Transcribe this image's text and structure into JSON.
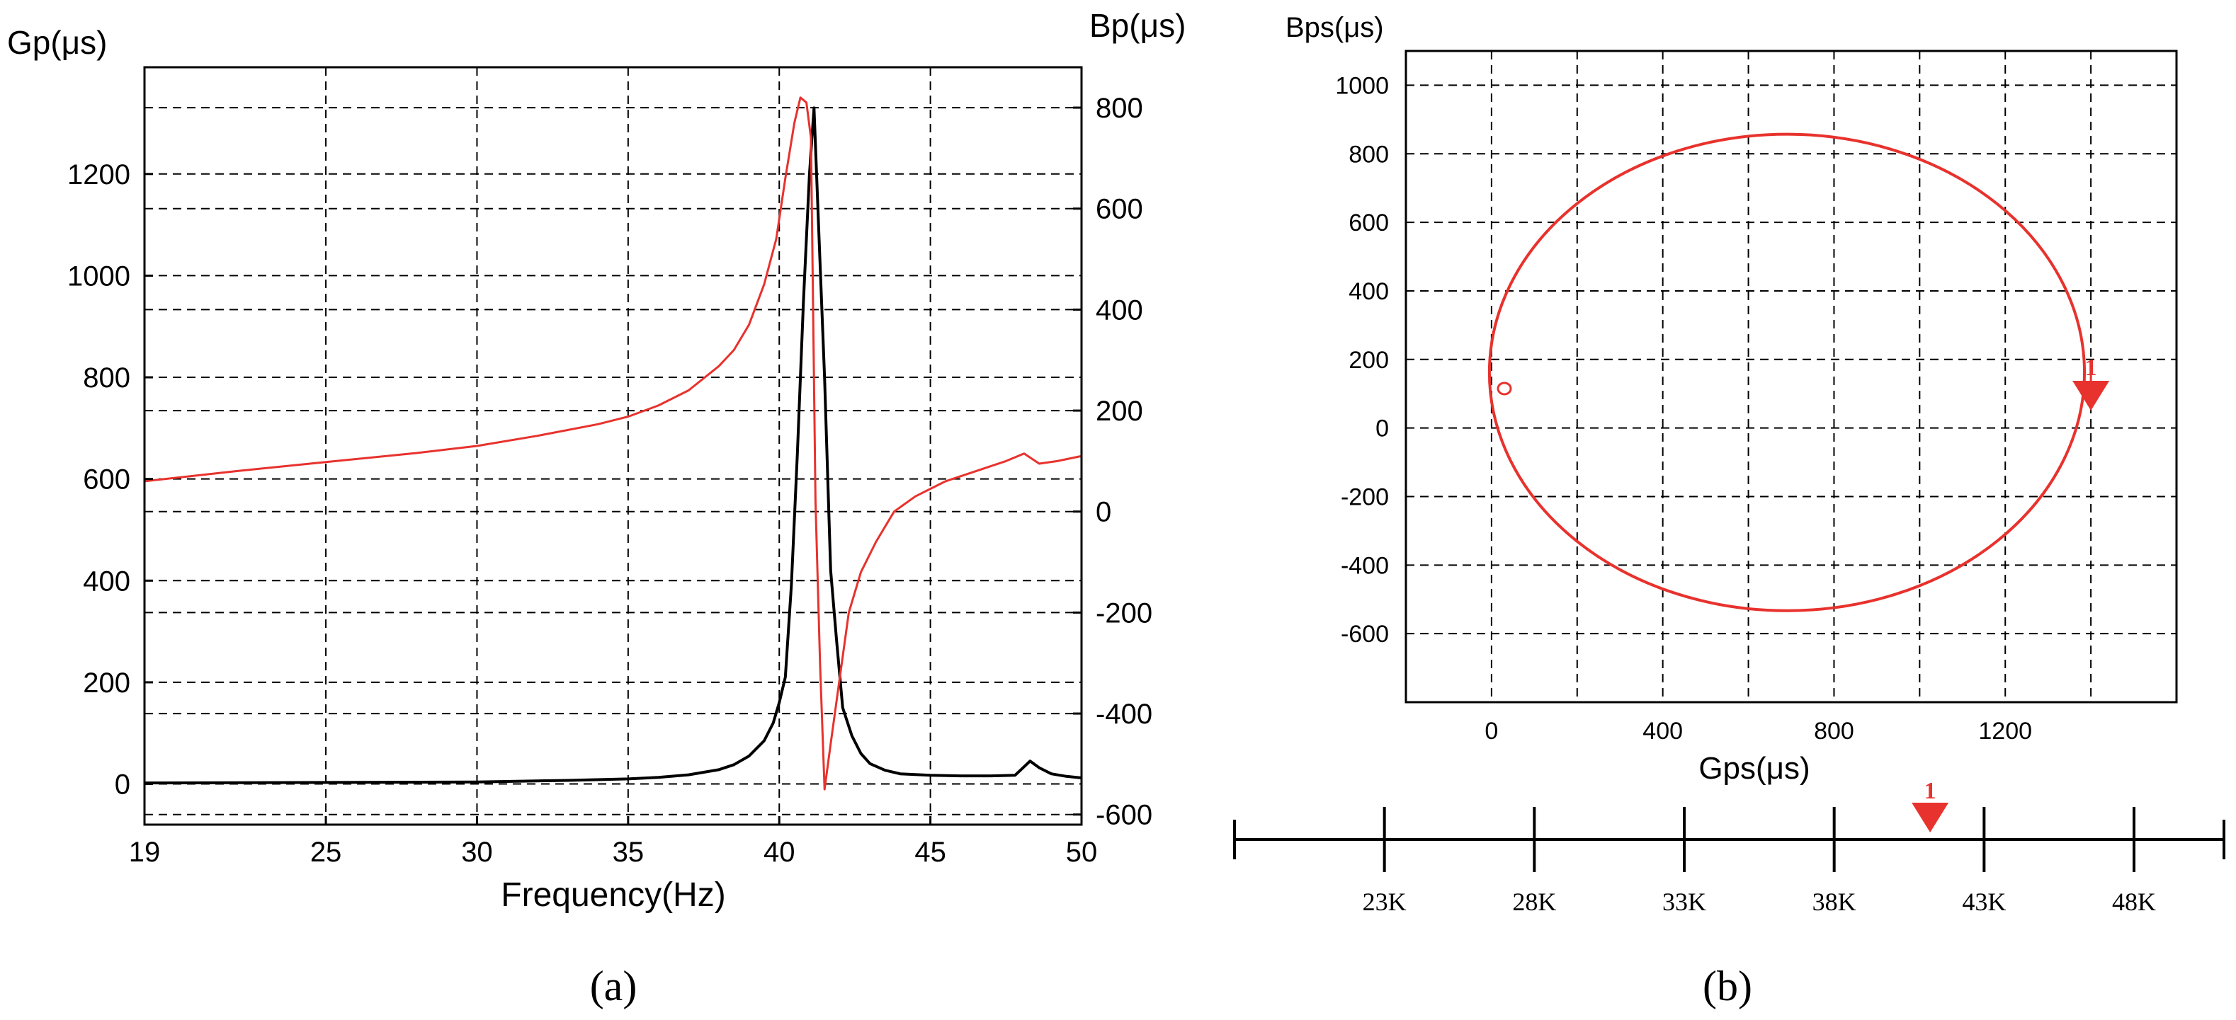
{
  "panels": {
    "a_label": "(a)",
    "b_label": "(b)"
  },
  "colors": {
    "red": "#e8322d",
    "black": "#000000"
  },
  "chart_data": [
    {
      "type": "line",
      "panel": "a",
      "xlabel": "Frequency(Hz)",
      "ylabel_left": "Gp(μs)",
      "ylabel_right": "Bp(μs)",
      "xlim": [
        19,
        50
      ],
      "ylim_left": [
        -80,
        1410
      ],
      "ylim_right": [
        -620,
        880
      ],
      "x_ticks": [
        "19",
        "25",
        "30",
        "35",
        "40",
        "45",
        "50"
      ],
      "x_tick_values": [
        19,
        25,
        30,
        35,
        40,
        45,
        50
      ],
      "y_left_ticks": [
        "0",
        "200",
        "400",
        "600",
        "800",
        "1000",
        "1200"
      ],
      "y_left_tick_values": [
        0,
        200,
        400,
        600,
        800,
        1000,
        1200
      ],
      "y_right_ticks": [
        "-600",
        "-400",
        "-200",
        "0",
        "200",
        "400",
        "600",
        "800"
      ],
      "y_right_tick_values": [
        -600,
        -400,
        -200,
        0,
        200,
        400,
        600,
        800
      ],
      "extra_h_grid_right": [
        -620,
        -600,
        -400,
        -200,
        0,
        200,
        400,
        600,
        800
      ],
      "series": [
        {
          "axis": "left",
          "color": "#000000",
          "x": [
            19,
            25,
            30,
            33,
            35,
            36,
            37,
            38,
            38.5,
            39,
            39.5,
            39.8,
            40,
            40.2,
            40.4,
            40.6,
            40.8,
            41,
            41.15,
            41.3,
            41.5,
            41.7,
            41.9,
            42.1,
            42.4,
            42.7,
            43,
            43.5,
            44,
            45,
            46,
            47,
            47.8,
            48.3,
            48.6,
            49,
            49.5,
            50
          ],
          "y": [
            2,
            3,
            4,
            7,
            10,
            13,
            18,
            28,
            38,
            55,
            85,
            120,
            160,
            210,
            390,
            650,
            950,
            1200,
            1330,
            1100,
            800,
            420,
            280,
            150,
            95,
            60,
            40,
            27,
            20,
            17,
            16,
            16,
            17,
            45,
            32,
            20,
            15,
            12
          ]
        },
        {
          "axis": "right",
          "color": "#e8322d",
          "x": [
            19,
            22,
            25,
            28,
            30,
            32,
            34,
            35,
            36,
            37,
            38,
            38.5,
            39,
            39.5,
            39.9,
            40.2,
            40.5,
            40.7,
            40.9,
            41.05,
            41.2,
            41.35,
            41.5,
            41.7,
            42,
            42.3,
            42.7,
            43.2,
            43.8,
            44.5,
            45.5,
            46.5,
            47.5,
            48.1,
            48.6,
            49.2,
            50
          ],
          "y": [
            60,
            80,
            98,
            116,
            130,
            150,
            173,
            188,
            210,
            240,
            288,
            320,
            370,
            450,
            540,
            660,
            770,
            820,
            810,
            740,
            20,
            -300,
            -550,
            -460,
            -330,
            -200,
            -120,
            -60,
            0,
            30,
            60,
            80,
            100,
            115,
            95,
            100,
            110
          ]
        }
      ]
    },
    {
      "type": "line",
      "panel": "b",
      "xlabel": "Gps(μs)",
      "ylabel": "Bps(μs)",
      "xlim": [
        -200,
        1600
      ],
      "ylim": [
        -800,
        1100
      ],
      "x_ticks": [
        "0",
        "400",
        "800",
        "1200"
      ],
      "x_tick_values": [
        0,
        400,
        800,
        1200
      ],
      "y_ticks": [
        "-600",
        "-400",
        "-200",
        "0",
        "200",
        "400",
        "600",
        "800",
        "1000"
      ],
      "y_tick_values": [
        -600,
        -400,
        -200,
        0,
        200,
        400,
        600,
        800,
        1000
      ],
      "circle": {
        "center_x": 690,
        "center_y": 162,
        "radius": 695,
        "color": "#e8322d"
      },
      "marker": {
        "label": "1",
        "gps": 1400,
        "bps": 150,
        "color": "#e8322d"
      },
      "frequency_scale": {
        "range": [
          18,
          51
        ],
        "ticks": [
          "23K",
          "28K",
          "33K",
          "38K",
          "43K",
          "48K"
        ],
        "tick_values": [
          23,
          28,
          33,
          38,
          43,
          48
        ],
        "marker_label": "1",
        "marker_value": 41.2
      }
    }
  ]
}
